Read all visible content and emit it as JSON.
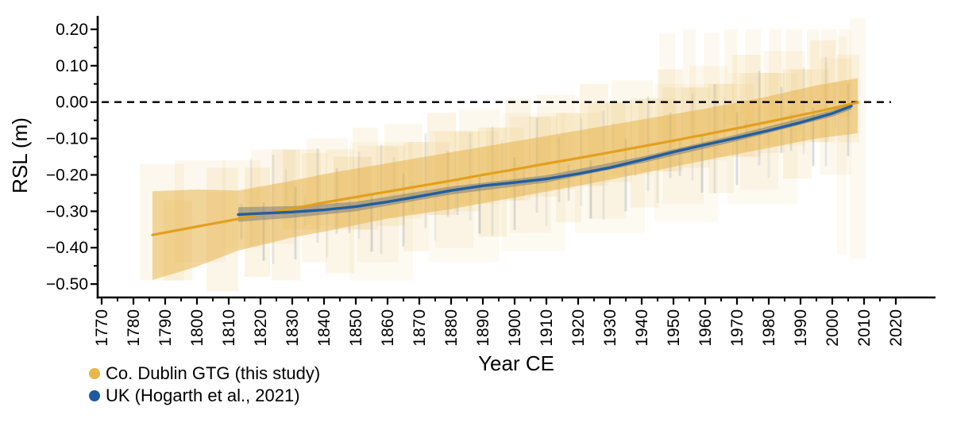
{
  "figure": {
    "background": "#FFFFFF"
  },
  "legend": {
    "items": [
      {
        "label": "Co. Dublin GTG (this study)",
        "color": "#E9B64A"
      },
      {
        "label": "UK (Hogarth et al., 2021)",
        "color": "#1D5A9E"
      }
    ]
  },
  "chart_data": {
    "type": "line",
    "title": "",
    "xlabel": "Year CE",
    "ylabel": "RSL (m)",
    "xlim": [
      1768.75,
      2032.5
    ],
    "ylim": [
      -0.539,
      0.237
    ],
    "grid": false,
    "legend_position": "bottom-left",
    "x_ticks": [
      1770,
      1780,
      1790,
      1800,
      1810,
      1820,
      1830,
      1840,
      1850,
      1860,
      1870,
      1880,
      1890,
      1900,
      1910,
      1920,
      1930,
      1940,
      1950,
      1960,
      1970,
      1980,
      1990,
      2000,
      2010,
      2020
    ],
    "x_tick_labels": [
      "1770",
      "1780",
      "1790",
      "1800",
      "1810",
      "1820",
      "1830",
      "1840",
      "1850",
      "1860",
      "1870",
      "1880",
      "1890",
      "1900",
      "1910",
      "1920",
      "1930",
      "1940",
      "1950",
      "1960",
      "1970",
      "1980",
      "1990",
      "2000",
      "2010",
      "2020"
    ],
    "x_minor_ticks": [
      1775,
      1785,
      1795,
      1805,
      1815,
      1825,
      1835,
      1845,
      1855,
      1865,
      1875,
      1885,
      1895,
      1905,
      1915,
      1925,
      1935,
      1945,
      1955,
      1965,
      1975,
      1985,
      1995,
      2005,
      2015
    ],
    "y_ticks": [
      0.2,
      0.1,
      0.0,
      -0.1,
      -0.2,
      -0.3,
      -0.4,
      -0.5
    ],
    "y_tick_labels": [
      "0.20",
      "0.10",
      "0.00",
      "−0.10",
      "−0.20",
      "−0.30",
      "−0.40",
      "−0.50"
    ],
    "y_minor_ticks": [
      0.15,
      0.05,
      -0.05,
      -0.15,
      -0.25,
      -0.35,
      -0.45
    ],
    "zero_line": {
      "y": 0.0,
      "style": "dashed",
      "x_start": 1770,
      "x_end": 2018.5,
      "color": "#000000"
    },
    "box_color": "#E9B64A",
    "bar_color": "#6E87A3",
    "series": [
      {
        "name": "Co. Dublin GTG (this study)",
        "line_color": "#E2A01D",
        "band_color": "rgba(230,176,66,0.50)",
        "points": [
          [
            1786,
            -0.365
          ],
          [
            1800,
            -0.342
          ],
          [
            1810,
            -0.326
          ],
          [
            1820,
            -0.309
          ],
          [
            1830,
            -0.293
          ],
          [
            1840,
            -0.276
          ],
          [
            1850,
            -0.261
          ],
          [
            1860,
            -0.246
          ],
          [
            1870,
            -0.231
          ],
          [
            1880,
            -0.216
          ],
          [
            1890,
            -0.2
          ],
          [
            1900,
            -0.185
          ],
          [
            1910,
            -0.169
          ],
          [
            1920,
            -0.154
          ],
          [
            1930,
            -0.138
          ],
          [
            1940,
            -0.122
          ],
          [
            1950,
            -0.106
          ],
          [
            1960,
            -0.089
          ],
          [
            1970,
            -0.072
          ],
          [
            1980,
            -0.054
          ],
          [
            1990,
            -0.036
          ],
          [
            2000,
            -0.017
          ],
          [
            2008,
            -0.001
          ]
        ],
        "band": [
          [
            1786,
            -0.489,
            -0.245
          ],
          [
            1800,
            -0.452,
            -0.24
          ],
          [
            1813,
            -0.408,
            -0.243
          ],
          [
            1830,
            -0.372,
            -0.216
          ],
          [
            1840,
            -0.356,
            -0.198
          ],
          [
            1860,
            -0.32,
            -0.168
          ],
          [
            1880,
            -0.294,
            -0.138
          ],
          [
            1900,
            -0.262,
            -0.108
          ],
          [
            1920,
            -0.23,
            -0.078
          ],
          [
            1940,
            -0.196,
            -0.048
          ],
          [
            1960,
            -0.16,
            -0.018
          ],
          [
            1980,
            -0.126,
            0.016
          ],
          [
            1995,
            -0.1,
            0.046
          ],
          [
            2008,
            -0.086,
            0.066
          ]
        ]
      },
      {
        "name": "UK (Hogarth et al., 2021)",
        "line_color": "#235E9E",
        "band_color": "rgba(100,112,125,0.45)",
        "points": [
          [
            1813,
            -0.309
          ],
          [
            1820,
            -0.306
          ],
          [
            1830,
            -0.302
          ],
          [
            1840,
            -0.296
          ],
          [
            1850,
            -0.287
          ],
          [
            1860,
            -0.274
          ],
          [
            1870,
            -0.259
          ],
          [
            1880,
            -0.243
          ],
          [
            1890,
            -0.23
          ],
          [
            1900,
            -0.221
          ],
          [
            1910,
            -0.211
          ],
          [
            1920,
            -0.197
          ],
          [
            1930,
            -0.18
          ],
          [
            1940,
            -0.159
          ],
          [
            1950,
            -0.137
          ],
          [
            1960,
            -0.117
          ],
          [
            1970,
            -0.098
          ],
          [
            1980,
            -0.078
          ],
          [
            1990,
            -0.056
          ],
          [
            2000,
            -0.031
          ],
          [
            2006,
            -0.011
          ]
        ],
        "band": [
          [
            1813,
            -0.329,
            -0.289
          ],
          [
            1830,
            -0.318,
            -0.286
          ],
          [
            1850,
            -0.3,
            -0.274
          ],
          [
            1880,
            -0.254,
            -0.232
          ],
          [
            1910,
            -0.221,
            -0.201
          ],
          [
            1940,
            -0.168,
            -0.15
          ],
          [
            1970,
            -0.107,
            -0.089
          ],
          [
            2000,
            -0.04,
            -0.022
          ],
          [
            2006,
            -0.02,
            -0.002
          ]
        ]
      }
    ],
    "boxes_format": [
      "year_center",
      "width_years",
      "rsl_center",
      "rsl_half_range",
      "opacity"
    ],
    "boxes": [
      [
        1789,
        14,
        -0.33,
        0.16,
        0.1
      ],
      [
        1794,
        9,
        -0.38,
        0.11,
        0.13
      ],
      [
        1801,
        16,
        -0.3,
        0.14,
        0.09
      ],
      [
        1808,
        10,
        -0.35,
        0.17,
        0.12
      ],
      [
        1814,
        12,
        -0.28,
        0.12,
        0.1
      ],
      [
        1819,
        8,
        -0.33,
        0.15,
        0.14
      ],
      [
        1824,
        14,
        -0.26,
        0.13,
        0.09
      ],
      [
        1828,
        9,
        -0.31,
        0.18,
        0.12
      ],
      [
        1833,
        12,
        -0.24,
        0.11,
        0.15
      ],
      [
        1837,
        8,
        -0.29,
        0.15,
        0.11
      ],
      [
        1841,
        13,
        -0.22,
        0.12,
        0.1
      ],
      [
        1845,
        9,
        -0.3,
        0.17,
        0.13
      ],
      [
        1849,
        12,
        -0.25,
        0.1,
        0.16
      ],
      [
        1853,
        8,
        -0.21,
        0.14,
        0.11
      ],
      [
        1857,
        13,
        -0.28,
        0.16,
        0.09
      ],
      [
        1861,
        9,
        -0.23,
        0.11,
        0.14
      ],
      [
        1865,
        12,
        -0.19,
        0.13,
        0.1
      ],
      [
        1869,
        8,
        -0.26,
        0.15,
        0.13
      ],
      [
        1873,
        13,
        -0.21,
        0.1,
        0.11
      ],
      [
        1877,
        9,
        -0.17,
        0.14,
        0.15
      ],
      [
        1881,
        12,
        -0.24,
        0.16,
        0.09
      ],
      [
        1885,
        8,
        -0.19,
        0.11,
        0.13
      ],
      [
        1889,
        13,
        -0.15,
        0.13,
        0.1
      ],
      [
        1893,
        9,
        -0.22,
        0.15,
        0.14
      ],
      [
        1897,
        12,
        -0.17,
        0.1,
        0.11
      ],
      [
        1901,
        8,
        -0.13,
        0.14,
        0.13
      ],
      [
        1905,
        13,
        -0.2,
        0.16,
        0.09
      ],
      [
        1909,
        9,
        -0.15,
        0.11,
        0.14
      ],
      [
        1913,
        12,
        -0.11,
        0.13,
        0.11
      ],
      [
        1917,
        8,
        -0.18,
        0.15,
        0.13
      ],
      [
        1921,
        13,
        -0.13,
        0.1,
        0.1
      ],
      [
        1925,
        9,
        -0.09,
        0.14,
        0.14
      ],
      [
        1929,
        12,
        -0.16,
        0.16,
        0.1
      ],
      [
        1933,
        8,
        -0.11,
        0.11,
        0.13
      ],
      [
        1937,
        13,
        -0.07,
        0.13,
        0.1
      ],
      [
        1941,
        9,
        -0.14,
        0.15,
        0.13
      ],
      [
        1945,
        12,
        -0.09,
        0.1,
        0.11
      ],
      [
        1949,
        8,
        -0.05,
        0.14,
        0.14
      ],
      [
        1953,
        13,
        -0.12,
        0.16,
        0.09
      ],
      [
        1957,
        9,
        -0.07,
        0.11,
        0.13
      ],
      [
        1961,
        12,
        -0.03,
        0.13,
        0.1
      ],
      [
        1965,
        8,
        -0.1,
        0.15,
        0.13
      ],
      [
        1969,
        13,
        -0.05,
        0.1,
        0.11
      ],
      [
        1973,
        9,
        -0.01,
        0.14,
        0.14
      ],
      [
        1977,
        12,
        -0.08,
        0.16,
        0.09
      ],
      [
        1981,
        8,
        -0.03,
        0.11,
        0.13
      ],
      [
        1985,
        13,
        0.01,
        0.13,
        0.1
      ],
      [
        1989,
        9,
        -0.06,
        0.15,
        0.13
      ],
      [
        1993,
        12,
        -0.01,
        0.1,
        0.11
      ],
      [
        1997,
        8,
        0.03,
        0.14,
        0.14
      ],
      [
        2001,
        10,
        -0.04,
        0.16,
        0.1
      ],
      [
        2005,
        7,
        0.01,
        0.12,
        0.13
      ],
      [
        1948,
        5,
        0.02,
        0.17,
        0.08
      ],
      [
        1955,
        4,
        0.05,
        0.15,
        0.09
      ],
      [
        1962,
        5,
        0.03,
        0.16,
        0.08
      ],
      [
        1968,
        4,
        0.07,
        0.13,
        0.1
      ],
      [
        1975,
        5,
        0.05,
        0.15,
        0.08
      ],
      [
        1982,
        4,
        0.08,
        0.12,
        0.1
      ],
      [
        1988,
        5,
        0.06,
        0.14,
        0.09
      ],
      [
        1994,
        4,
        0.09,
        0.11,
        0.1
      ],
      [
        1999,
        5,
        0.1,
        0.1,
        0.09
      ],
      [
        2004,
        4,
        0.08,
        0.12,
        0.1
      ],
      [
        2008,
        5,
        -0.1,
        0.33,
        0.08
      ],
      [
        2003,
        3,
        -0.12,
        0.3,
        0.07
      ],
      [
        1858,
        20,
        -0.3,
        0.19,
        0.07
      ],
      [
        1884,
        22,
        -0.26,
        0.18,
        0.07
      ],
      [
        1906,
        20,
        -0.22,
        0.19,
        0.07
      ],
      [
        1930,
        22,
        -0.18,
        0.18,
        0.07
      ],
      [
        1954,
        20,
        -0.14,
        0.19,
        0.07
      ],
      [
        1978,
        22,
        -0.1,
        0.18,
        0.07
      ]
    ],
    "bars_format": [
      "year_center",
      "rsl_center",
      "rsl_half_range",
      "opacity"
    ],
    "bars": [
      [
        1814,
        -0.328,
        0.05,
        0.22
      ],
      [
        1817,
        -0.277,
        0.12,
        0.12
      ],
      [
        1821,
        -0.356,
        0.08,
        0.3
      ],
      [
        1824,
        -0.295,
        0.15,
        0.16
      ],
      [
        1828,
        -0.243,
        0.06,
        0.1
      ],
      [
        1831,
        -0.332,
        0.1,
        0.25
      ],
      [
        1834,
        -0.3,
        0.04,
        0.14
      ],
      [
        1838,
        -0.257,
        0.13,
        0.18
      ],
      [
        1841,
        -0.356,
        0.07,
        0.11
      ],
      [
        1844,
        -0.272,
        0.09,
        0.2
      ],
      [
        1848,
        -0.309,
        0.05,
        0.22
      ],
      [
        1851,
        -0.256,
        0.12,
        0.12
      ],
      [
        1855,
        -0.331,
        0.08,
        0.3
      ],
      [
        1858,
        -0.267,
        0.15,
        0.16
      ],
      [
        1862,
        -0.211,
        0.06,
        0.1
      ],
      [
        1865,
        -0.297,
        0.1,
        0.25
      ],
      [
        1868,
        -0.262,
        0.04,
        0.14
      ],
      [
        1872,
        -0.216,
        0.13,
        0.18
      ],
      [
        1875,
        -0.311,
        0.07,
        0.11
      ],
      [
        1879,
        -0.225,
        0.09,
        0.2
      ],
      [
        1882,
        -0.26,
        0.05,
        0.22
      ],
      [
        1886,
        -0.205,
        0.12,
        0.12
      ],
      [
        1889,
        -0.281,
        0.08,
        0.3
      ],
      [
        1893,
        -0.217,
        0.15,
        0.16
      ],
      [
        1896,
        -0.164,
        0.06,
        0.1
      ],
      [
        1900,
        -0.251,
        0.1,
        0.25
      ],
      [
        1903,
        -0.218,
        0.04,
        0.14
      ],
      [
        1907,
        -0.174,
        0.13,
        0.18
      ],
      [
        1910,
        -0.271,
        0.07,
        0.11
      ],
      [
        1914,
        -0.185,
        0.09,
        0.2
      ],
      [
        1917,
        -0.221,
        0.05,
        0.22
      ],
      [
        1921,
        -0.165,
        0.12,
        0.12
      ],
      [
        1924,
        -0.24,
        0.08,
        0.3
      ],
      [
        1928,
        -0.173,
        0.15,
        0.16
      ],
      [
        1931,
        -0.118,
        0.06,
        0.1
      ],
      [
        1935,
        -0.2,
        0.1,
        0.25
      ],
      [
        1938,
        -0.163,
        0.04,
        0.14
      ],
      [
        1942,
        -0.115,
        0.13,
        0.18
      ],
      [
        1945,
        -0.208,
        0.07,
        0.11
      ],
      [
        1949,
        -0.119,
        0.09,
        0.2
      ],
      [
        1952,
        -0.153,
        0.05,
        0.22
      ],
      [
        1956,
        -0.095,
        0.12,
        0.12
      ],
      [
        1959,
        -0.169,
        0.08,
        0.3
      ],
      [
        1963,
        -0.101,
        0.15,
        0.16
      ],
      [
        1966,
        -0.046,
        0.06,
        0.1
      ],
      [
        1970,
        -0.128,
        0.1,
        0.25
      ],
      [
        1973,
        -0.092,
        0.04,
        0.14
      ],
      [
        1977,
        -0.044,
        0.13,
        0.18
      ],
      [
        1980,
        -0.138,
        0.07,
        0.11
      ],
      [
        1984,
        -0.049,
        0.09,
        0.2
      ],
      [
        1987,
        -0.083,
        0.05,
        0.22
      ],
      [
        1991,
        -0.024,
        0.12,
        0.12
      ],
      [
        1994,
        -0.096,
        0.08,
        0.3
      ],
      [
        1998,
        -0.026,
        0.15,
        0.16
      ],
      [
        2001,
        -0.009,
        0.06,
        0.1
      ],
      [
        2005,
        -0.049,
        0.1,
        0.25
      ]
    ]
  }
}
